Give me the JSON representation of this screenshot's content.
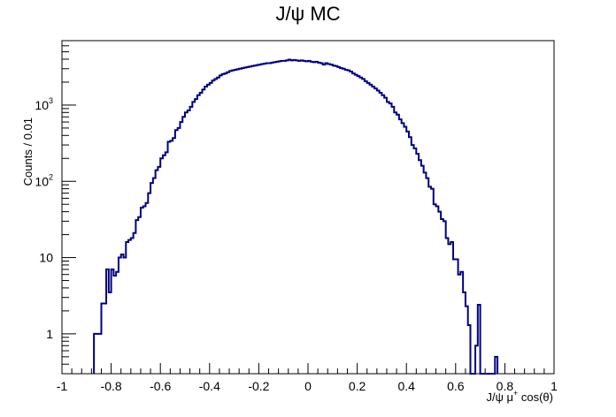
{
  "chart_data": {
    "type": "histogram",
    "title": "J/ψ MC",
    "xlabel": "J/ψ μ+ cos(θ)",
    "ylabel": "Counts / 0.01",
    "xlim": [
      -1,
      1
    ],
    "ylim": [
      0.3,
      7000
    ],
    "ylog": true,
    "bin_width": 0.01,
    "x_ticks": [
      "-1",
      "-0.8",
      "-0.6",
      "-0.4",
      "-0.2",
      "0",
      "0.2",
      "0.4",
      "0.6",
      "0.8",
      "1"
    ],
    "y_ticks": [
      {
        "base": "1",
        "exp": ""
      },
      {
        "base": "10",
        "exp": ""
      },
      {
        "base": "10",
        "exp": "2"
      },
      {
        "base": "10",
        "exp": "3"
      }
    ],
    "color": "#000080",
    "x_start": -0.87,
    "counts": [
      1,
      1,
      1,
      2.5,
      2.5,
      7,
      3.5,
      7,
      5.8,
      6.5,
      10,
      11,
      10,
      16,
      17,
      18,
      21,
      31,
      34,
      45,
      47,
      52,
      70,
      95,
      110,
      140,
      155,
      200,
      220,
      240,
      330,
      340,
      370,
      470,
      500,
      600,
      700,
      800,
      850,
      950,
      1100,
      1200,
      1350,
      1450,
      1600,
      1750,
      1850,
      1950,
      2100,
      2200,
      2300,
      2450,
      2550,
      2600,
      2700,
      2800,
      2850,
      2900,
      2950,
      3000,
      3050,
      3100,
      3150,
      3200,
      3250,
      3300,
      3350,
      3400,
      3450,
      3500,
      3550,
      3550,
      3600,
      3650,
      3700,
      3750,
      3800,
      3800,
      3850,
      3950,
      3850,
      3900,
      3850,
      3800,
      3850,
      3800,
      3750,
      3800,
      3700,
      3650,
      3700,
      3600,
      3550,
      3400,
      3550,
      3450,
      3400,
      3300,
      3250,
      3150,
      3050,
      3000,
      2900,
      2850,
      2750,
      2600,
      2500,
      2400,
      2300,
      2200,
      2050,
      1950,
      1850,
      1750,
      1650,
      1550,
      1450,
      1350,
      1250,
      1100,
      1050,
      950,
      800,
      750,
      650,
      580,
      520,
      450,
      380,
      300,
      270,
      230,
      190,
      160,
      130,
      110,
      85,
      80,
      50,
      47,
      40,
      32,
      30,
      18,
      15,
      16,
      9.5,
      9.5,
      6,
      6.5,
      3.5,
      2.3,
      1.3,
      0.2,
      0.2,
      0.7,
      2.4,
      0.2,
      0.2,
      0.2,
      0.2,
      0.2,
      0.2,
      0.5
    ]
  }
}
